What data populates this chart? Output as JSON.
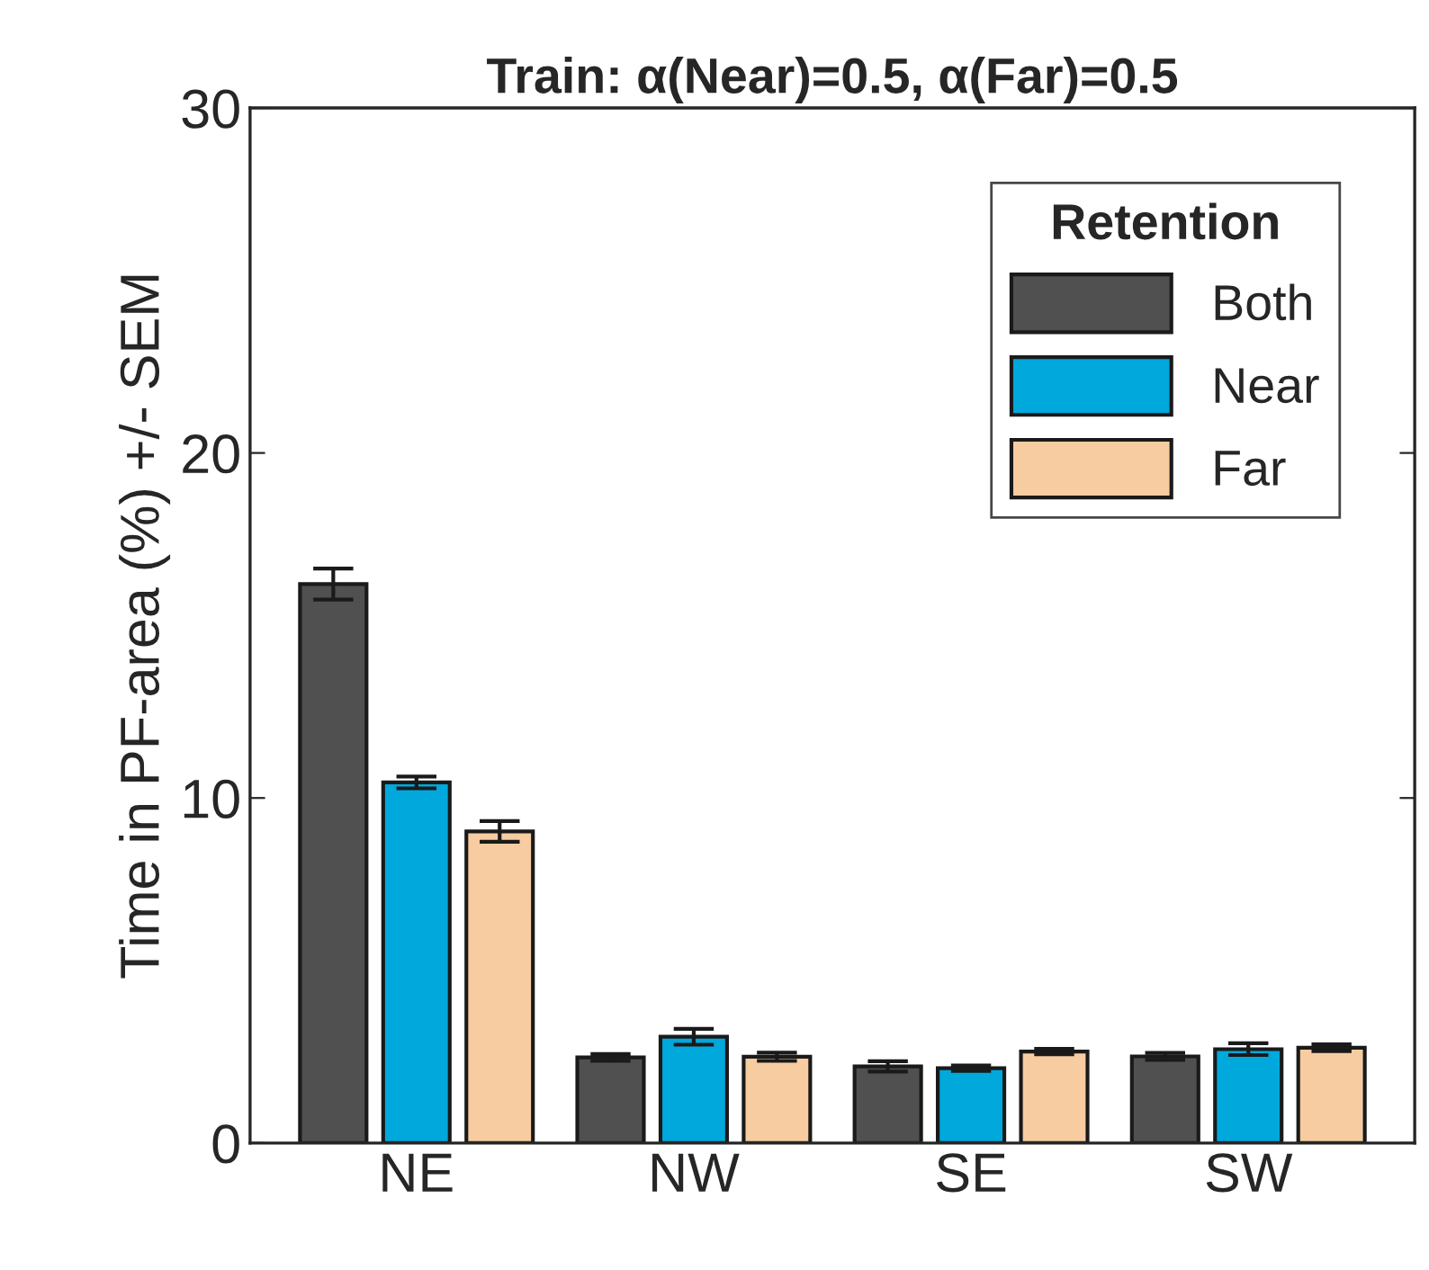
{
  "chart_data": {
    "type": "bar",
    "title": "Train: α(Near)=0.5, α(Far)=0.5",
    "ylabel": "Time in PF-area (%) +/- SEM",
    "legend_title": "Retention",
    "categories": [
      "NE",
      "NW",
      "SE",
      "SW"
    ],
    "series": [
      {
        "name": "Both",
        "color": "#505050",
        "values": [
          16.2,
          2.48,
          2.22,
          2.51
        ],
        "errors": [
          0.45,
          0.1,
          0.15,
          0.1
        ]
      },
      {
        "name": "Near",
        "color": "#00a8dc",
        "values": [
          10.45,
          3.08,
          2.17,
          2.72
        ],
        "errors": [
          0.17,
          0.23,
          0.08,
          0.17
        ]
      },
      {
        "name": "Far",
        "color": "#f7cca0",
        "values": [
          9.03,
          2.5,
          2.65,
          2.76
        ],
        "errors": [
          0.3,
          0.12,
          0.08,
          0.1
        ]
      }
    ],
    "ylim": [
      0,
      30
    ],
    "yticks": [
      0,
      10,
      20,
      30
    ],
    "grid": false,
    "legend": "top right"
  }
}
